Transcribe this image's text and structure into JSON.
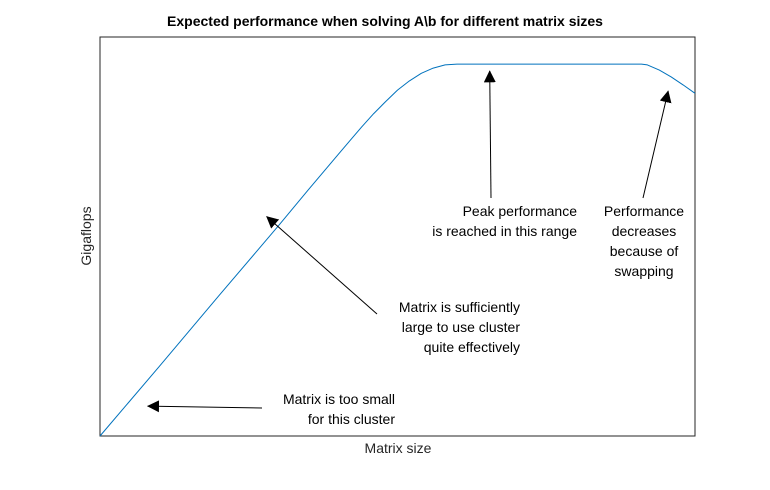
{
  "chart_data": {
    "type": "line",
    "title": "Expected performance when solving A\\b for different matrix sizes",
    "xlabel": "Matrix size",
    "ylabel": "Gigaflops",
    "xlim": [
      0,
      1
    ],
    "ylim": [
      0,
      1
    ],
    "x_ticks": [],
    "y_ticks": [],
    "grid": false,
    "box": true,
    "series": [
      {
        "color": "#0072BD",
        "x": [
          0.0,
          0.1,
          0.2,
          0.3,
          0.35,
          0.4,
          0.42,
          0.44,
          0.46,
          0.48,
          0.5,
          0.52,
          0.54,
          0.56,
          0.58,
          0.6,
          0.65,
          0.7,
          0.75,
          0.8,
          0.85,
          0.9,
          0.91,
          0.92,
          0.94,
          0.96,
          0.98,
          1.0
        ],
        "y": [
          0.0,
          0.175,
          0.352,
          0.527,
          0.617,
          0.705,
          0.74,
          0.775,
          0.808,
          0.838,
          0.867,
          0.89,
          0.909,
          0.922,
          0.93,
          0.932,
          0.932,
          0.932,
          0.932,
          0.932,
          0.932,
          0.932,
          0.932,
          0.93,
          0.917,
          0.9,
          0.88,
          0.859
        ]
      }
    ],
    "annotations": [
      {
        "name": "annotation-small-matrix",
        "lines": [
          "Matrix is too small",
          "for this cluster"
        ],
        "align": "right",
        "arrow_to": [
          0.08,
          0.075
        ]
      },
      {
        "name": "annotation-effective",
        "lines": [
          "Matrix is sufficiently",
          "large to use cluster",
          "quite effectively"
        ],
        "align": "right",
        "arrow_to": [
          0.28,
          0.55
        ]
      },
      {
        "name": "annotation-peak",
        "lines": [
          "Peak performance",
          "is reached in this range"
        ],
        "align": "right",
        "arrow_to": [
          0.655,
          0.915
        ]
      },
      {
        "name": "annotation-swapping",
        "lines": [
          "Performance",
          "decreases",
          "because of",
          "swapping"
        ],
        "align": "center",
        "arrow_to": [
          0.955,
          0.865
        ]
      }
    ]
  }
}
